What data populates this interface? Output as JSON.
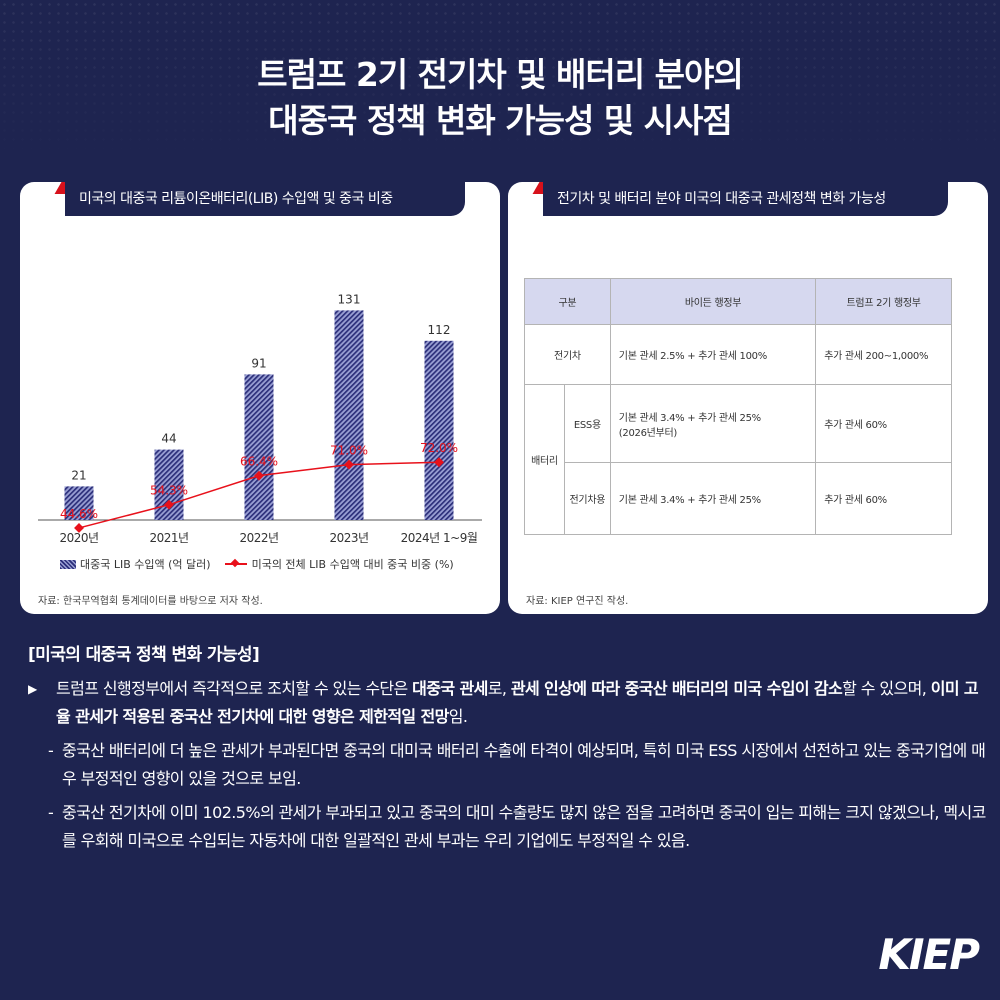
{
  "title": {
    "line1": "트럼프 2기 전기차 및 배터리 분야의",
    "line2": "대중국 정책 변화 가능성 및 시사점"
  },
  "left_panel": {
    "title": "미국의 대중국 리튬이온배터리(LIB) 수입액 및 중국 비중",
    "legend_bar": "대중국 LIB 수입액 (억 달러)",
    "legend_line": "미국의 전체 LIB 수입액 대비 중국 비중 (%)",
    "source": "자료: 한국무역협회 통계데이터를 바탕으로 저자 작성."
  },
  "chart_data": {
    "type": "bar",
    "title": "미국의 대중국 리튬이온배터리(LIB) 수입액 및 중국 비중",
    "categories": [
      "2020년",
      "2021년",
      "2022년",
      "2023년",
      "2024년 1~9월"
    ],
    "series": [
      {
        "name": "대중국 LIB 수입액 (억 달러)",
        "type": "bar",
        "values": [
          21,
          44,
          91,
          131,
          112
        ],
        "color": "#2c2f7a"
      },
      {
        "name": "미국의 전체 LIB 수입액 대비 중국 비중 (%)",
        "type": "line",
        "values": [
          44.6,
          54.3,
          66.4,
          71.0,
          72.0
        ],
        "labels": [
          "44.6%",
          "54.3%",
          "66.4%",
          "71.0%",
          "72.0%"
        ],
        "color": "#e8111b"
      }
    ],
    "legend": "bottom"
  },
  "right_panel": {
    "title": "전기차 및 배터리 분야 미국의 대중국 관세정책 변화 가능성",
    "table": {
      "headers": [
        "구분",
        "바이든 행정부",
        "트럼프 2기 행정부"
      ],
      "ev_label": "전기차",
      "ev_biden": "기본 관세 2.5% + 추가 관세 100%",
      "ev_trump": "추가 관세 200~1,000%",
      "battery_label": "배터리",
      "ess_label": "ESS용",
      "ess_biden_1": "기본 관세 3.4% + 추가 관세 25%",
      "ess_biden_2": "(2026년부터)",
      "ess_trump": "추가 관세 60%",
      "evb_label": "전기차용",
      "evb_biden": "기본 관세 3.4% + 추가 관세 25%",
      "evb_trump": "추가 관세 60%"
    },
    "source": "자료: KIEP 연구진 작성."
  },
  "body": {
    "heading": "[미국의 대중국 정책 변화 가능성]",
    "marker": "▶",
    "dash": "-",
    "p1": {
      "t1": "트럼프 신행정부에서 즉각적으로 조치할 수 있는 수단은 ",
      "b1": "대중국 관세",
      "t2": "로, ",
      "b2": "관세 인상에 따라 중국산 배터리의 미국 수입이 감소",
      "t3": "할 수 있으며, ",
      "b3": "이미 고율 관세가 적용된 중국산 전기차에 대한 영향은 제한적일 전망",
      "t4": "임."
    },
    "d1": "중국산 배터리에 더 높은 관세가 부과된다면 중국의 대미국 배터리 수출에 타격이 예상되며, 특히 미국 ESS 시장에서 선전하고 있는 중국기업에 매우 부정적인 영향이 있을 것으로 보임.",
    "d2": "중국산 전기차에 이미 102.5%의 관세가 부과되고 있고 중국의 대미 수출량도 많지 않은 점을 고려하면 중국이 입는 피해는 크지 않겠으나, 멕시코를 우회해 미국으로 수입되는 자동차에 대한 일괄적인 관세 부과는 우리 기업에도 부정적일 수 있음."
  },
  "logo": "KIEP"
}
